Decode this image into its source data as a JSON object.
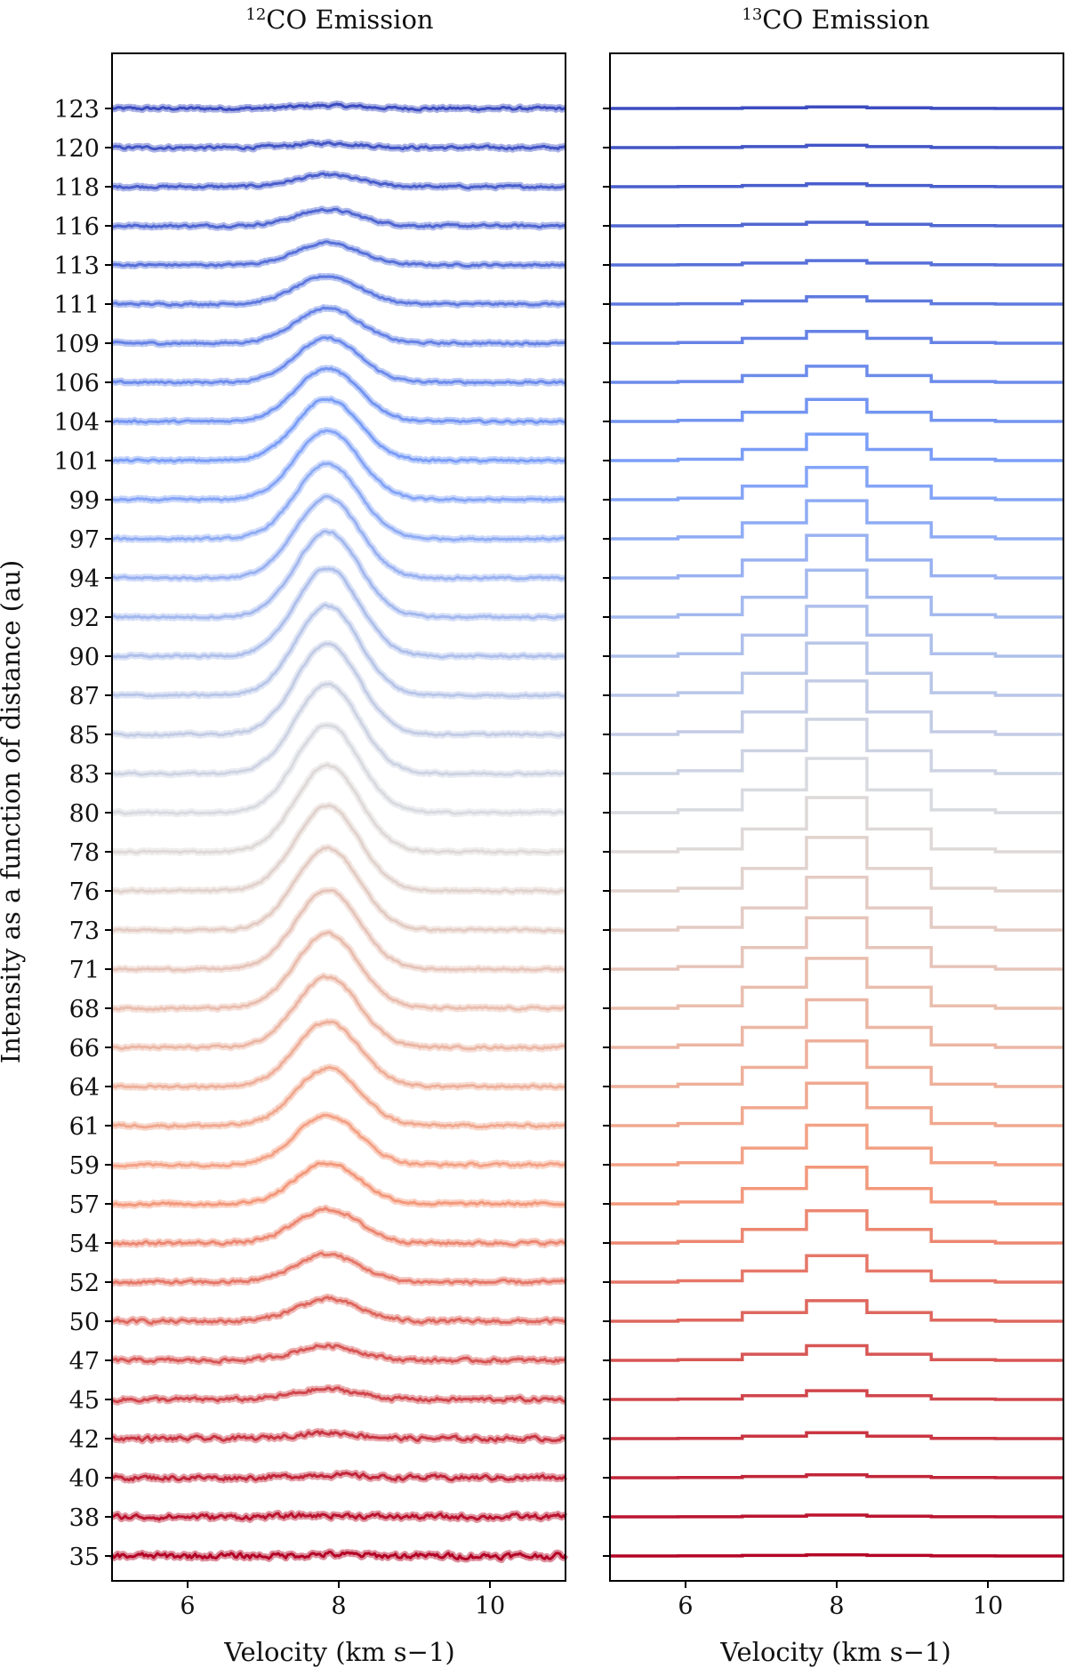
{
  "chart_data": [
    {
      "type": "line",
      "title_sup": "12",
      "title": "CO Emission",
      "xlabel": "Velocity (km s−1)",
      "ylabel": "Intensity as a function of distance (au)",
      "xlim": [
        5,
        11
      ],
      "xticks": [
        "6",
        "8",
        "10"
      ],
      "xtick_values": [
        6,
        8,
        10
      ],
      "distances_au": [
        123,
        120,
        118,
        116,
        113,
        111,
        109,
        106,
        104,
        101,
        99,
        97,
        94,
        92,
        90,
        87,
        85,
        83,
        80,
        78,
        76,
        73,
        71,
        68,
        66,
        64,
        61,
        59,
        57,
        54,
        52,
        50,
        47,
        45,
        42,
        40,
        38,
        35
      ],
      "line_center_kms": 7.85,
      "line_width_kms": 0.42,
      "peak_intensity_rel": [
        0.1,
        0.15,
        0.4,
        0.55,
        0.75,
        0.95,
        1.2,
        1.5,
        1.8,
        2.1,
        2.35,
        2.55,
        2.75,
        2.9,
        3.0,
        3.05,
        3.08,
        3.05,
        3.0,
        2.95,
        2.9,
        2.8,
        2.7,
        2.55,
        2.4,
        2.2,
        1.95,
        1.7,
        1.4,
        1.15,
        0.95,
        0.75,
        0.5,
        0.35,
        0.2,
        0.1,
        0.05,
        0.05
      ],
      "noise_rel": [
        0.08,
        0.08,
        0.07,
        0.07,
        0.06,
        0.06,
        0.06,
        0.06,
        0.06,
        0.06,
        0.06,
        0.06,
        0.06,
        0.06,
        0.06,
        0.06,
        0.06,
        0.06,
        0.06,
        0.06,
        0.06,
        0.06,
        0.06,
        0.07,
        0.07,
        0.07,
        0.08,
        0.08,
        0.08,
        0.09,
        0.09,
        0.1,
        0.1,
        0.11,
        0.12,
        0.13,
        0.14,
        0.16
      ]
    },
    {
      "type": "line",
      "title_sup": "13",
      "title": "CO Emission",
      "xlabel": "Velocity (km s−1)",
      "xlim": [
        5,
        11
      ],
      "xticks": [
        "6",
        "8",
        "10"
      ],
      "xtick_values": [
        6,
        8,
        10
      ],
      "distances_au": [
        123,
        120,
        118,
        116,
        113,
        111,
        109,
        106,
        104,
        101,
        99,
        97,
        94,
        92,
        90,
        87,
        85,
        83,
        80,
        78,
        76,
        73,
        71,
        68,
        66,
        64,
        61,
        59,
        57,
        54,
        52,
        50,
        47,
        45,
        42,
        40,
        38,
        35
      ],
      "channel_edges_kms": [
        5.0,
        5.9,
        6.75,
        7.6,
        8.4,
        9.25,
        10.1,
        11.0
      ],
      "channel_shape": [
        0.0,
        0.05,
        0.42,
        1.0,
        0.42,
        0.05,
        0.0
      ],
      "peak_intensity_rel": [
        0.05,
        0.08,
        0.1,
        0.12,
        0.15,
        0.25,
        0.4,
        0.55,
        0.75,
        0.9,
        1.1,
        1.3,
        1.45,
        1.6,
        1.7,
        1.78,
        1.82,
        1.85,
        1.85,
        1.85,
        1.82,
        1.8,
        1.75,
        1.7,
        1.62,
        1.55,
        1.45,
        1.35,
        1.25,
        1.1,
        0.9,
        0.7,
        0.5,
        0.3,
        0.2,
        0.1,
        0.06,
        0.04
      ]
    }
  ]
}
